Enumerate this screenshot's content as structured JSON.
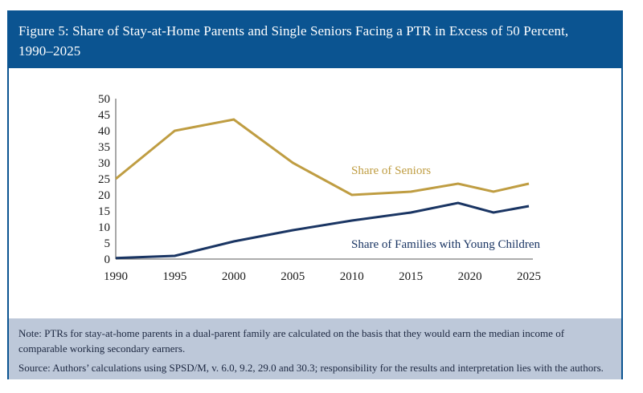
{
  "figure": {
    "title_lines": [
      "Figure 5: Share of Stay-at-Home Parents and Single Seniors Facing a PTR in Excess of 50 Percent,",
      "1990–2025"
    ]
  },
  "chart_data": {
    "type": "line",
    "title": "Figure 5: Share of Stay-at-Home Parents and Single Seniors Facing a PTR in Excess of 50 Percent, 1990–2025",
    "x": [
      1990,
      1995,
      2000,
      2005,
      2010,
      2015,
      2019,
      2022,
      2025
    ],
    "series": [
      {
        "name": "Share of Seniors",
        "color": "#bf9d42",
        "values": [
          25,
          40,
          43.5,
          30,
          20,
          21,
          23.5,
          21,
          23.5
        ]
      },
      {
        "name": "Share of Families with Young Children",
        "color": "#1a3563",
        "values": [
          0.3,
          1,
          5.5,
          9,
          12,
          14.5,
          17.5,
          14.5,
          16.5
        ]
      }
    ],
    "xlabel": "",
    "ylabel": "",
    "xlim": [
      1990,
      2025
    ],
    "ylim": [
      0,
      50
    ],
    "ytick_step": 5,
    "yticks": [
      0,
      5,
      10,
      15,
      20,
      25,
      30,
      35,
      40,
      45,
      50
    ],
    "xticks": [
      1990,
      1995,
      2000,
      2005,
      2010,
      2015,
      2020,
      2025
    ],
    "grid": false,
    "legend": "inline-series-labels"
  },
  "notes": {
    "note": "Note: PTRs for stay-at-home parents in a dual-parent family are calculated on the basis that they would earn the median income of comparable working secondary earners.",
    "source": "Source: Authors’ calculations using SPSD/M, v. 6.0, 9.2, 29.0 and 30.3; responsibility for the results and interpretation lies with the authors."
  },
  "colors": {
    "header_background": "#0b5491",
    "frame_border": "#0b5491",
    "notes_background": "#bdc8d9",
    "notes_text": "#1c2740",
    "seniors_line": "#bf9d42",
    "families_line": "#1a3563",
    "axis": "#7a7a7a"
  }
}
